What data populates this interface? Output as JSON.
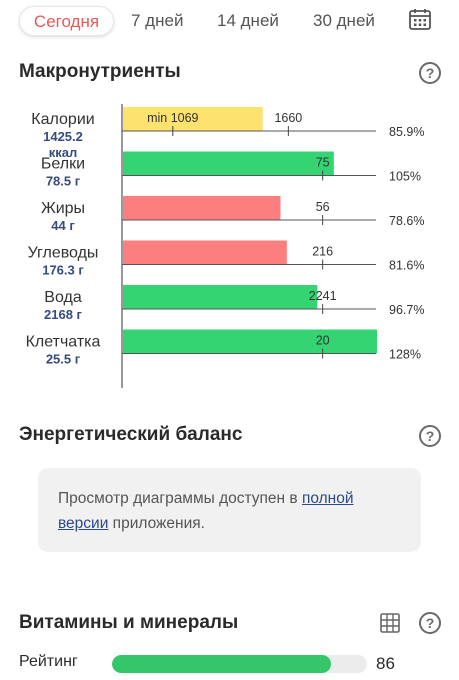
{
  "tabs": [
    {
      "label": "Сегодня",
      "active": true
    },
    {
      "label": "7 дней"
    },
    {
      "label": "14 дней"
    },
    {
      "label": "30 дней"
    }
  ],
  "calendar_icon": "calendar-icon",
  "macro": {
    "title": "Макронутриенты",
    "help_icon": "help-icon"
  },
  "chart_data": {
    "type": "bar",
    "orientation": "horizontal",
    "scale_max": 1660,
    "rows": [
      {
        "name": "Калории",
        "value_lines": [
          "1425.2",
          "ккал"
        ],
        "fill": 0.55,
        "color": "#fde26e",
        "min_label": "min 1069",
        "min_fill": 0.2,
        "target_label": "1660",
        "target_fill": 0.655,
        "percent": "85.9%"
      },
      {
        "name": "Белки",
        "value_lines": [
          "78.5 г"
        ],
        "fill": 0.83,
        "color": "#35d472",
        "target_label": "75",
        "target_fill": 0.79,
        "percent": "105%"
      },
      {
        "name": "Жиры",
        "value_lines": [
          "44 г"
        ],
        "fill": 0.62,
        "color": "#fc7e7e",
        "target_label": "56",
        "target_fill": 0.79,
        "percent": "78.6%"
      },
      {
        "name": "Углеводы",
        "value_lines": [
          "176.3 г"
        ],
        "fill": 0.645,
        "color": "#fc7e7e",
        "target_label": "216",
        "target_fill": 0.79,
        "percent": "81.6%"
      },
      {
        "name": "Вода",
        "value_lines": [
          "2168 г"
        ],
        "fill": 0.765,
        "color": "#35d472",
        "target_label": "2241",
        "target_fill": 0.79,
        "percent": "96.7%"
      },
      {
        "name": "Клетчатка",
        "value_lines": [
          "25.5 г"
        ],
        "fill": 1.0,
        "color": "#35d472",
        "target_label": "20",
        "target_fill": 0.79,
        "percent": "128%"
      }
    ]
  },
  "energy": {
    "title": "Энергетический баланс",
    "help_icon": "help-icon",
    "message_before": "Просмотр диаграммы доступен в ",
    "message_link": "полной версии",
    "message_after": " приложения."
  },
  "vitamins": {
    "title": "Витамины и минералы",
    "table_icon": "table-icon",
    "help_icon": "help-icon",
    "rating_label": "Рейтинг",
    "rating_value": "86",
    "rating_fraction": 0.86
  }
}
